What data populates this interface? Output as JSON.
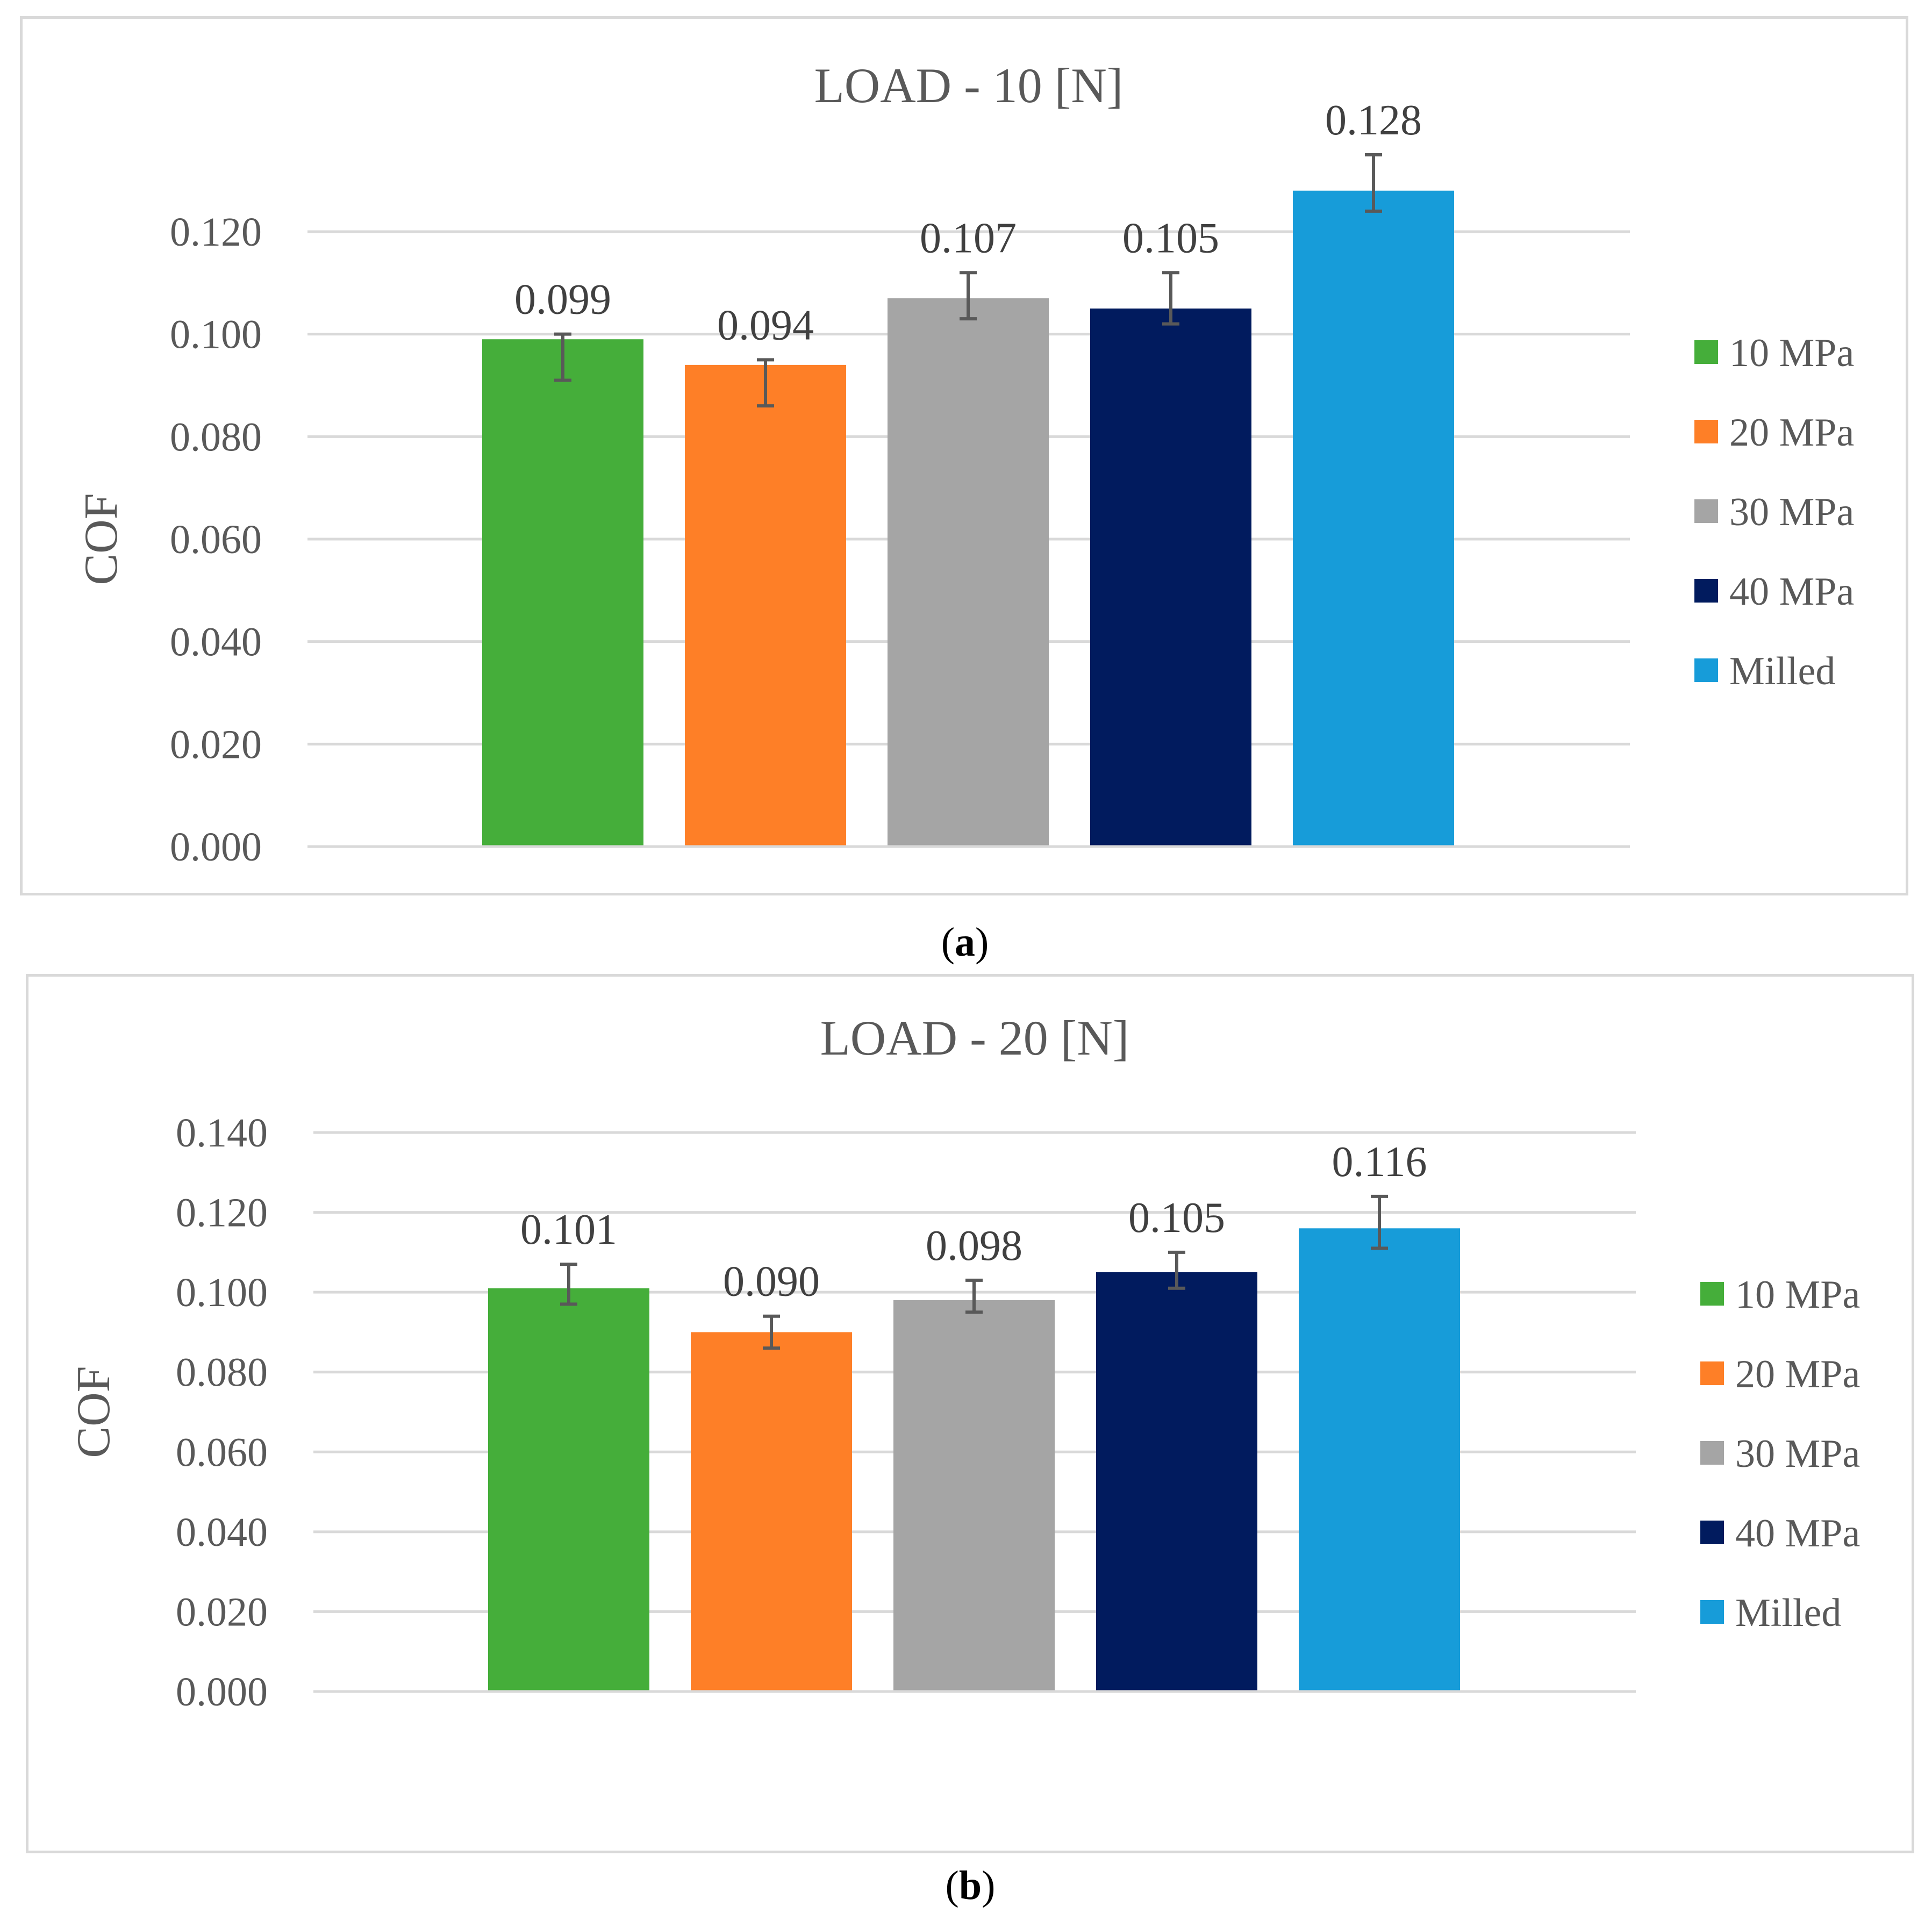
{
  "charts": [
    {
      "caption_letter": "a",
      "chart_data": {
        "type": "bar",
        "title": "LOAD - 10 [N]",
        "xlabel": "",
        "ylabel": "COF",
        "ylim": [
          0,
          0.12
        ],
        "yticks": [
          "0.000",
          "0.020",
          "0.040",
          "0.060",
          "0.080",
          "0.100",
          "0.120"
        ],
        "grid": true,
        "legend_position": "right",
        "categories": [
          "10 MPa",
          "20 MPa",
          "30 MPa",
          "40 MPa",
          "Milled"
        ],
        "values": [
          0.099,
          0.094,
          0.107,
          0.105,
          0.128
        ],
        "value_labels": [
          "0.099",
          "0.094",
          "0.107",
          "0.105",
          "0.128"
        ],
        "error_low": [
          0.091,
          0.086,
          0.103,
          0.102,
          0.124
        ],
        "error_high": [
          0.1,
          0.095,
          0.112,
          0.112,
          0.135
        ],
        "colors": [
          "#45ae3a",
          "#fe7f27",
          "#a5a5a5",
          "#011b5e",
          "#179cd9"
        ]
      }
    },
    {
      "caption_letter": "b",
      "chart_data": {
        "type": "bar",
        "title": "LOAD - 20 [N]",
        "xlabel": "",
        "ylabel": "COF",
        "ylim": [
          0,
          0.14
        ],
        "yticks": [
          "0.000",
          "0.020",
          "0.040",
          "0.060",
          "0.080",
          "0.100",
          "0.120",
          "0.140"
        ],
        "grid": true,
        "legend_position": "right",
        "categories": [
          "10 MPa",
          "20 MPa",
          "30 MPa",
          "40 MPa",
          "Milled"
        ],
        "values": [
          0.101,
          0.09,
          0.098,
          0.105,
          0.116
        ],
        "value_labels": [
          "0.101",
          "0.090",
          "0.098",
          "0.105",
          "0.116"
        ],
        "error_low": [
          0.097,
          0.086,
          0.095,
          0.101,
          0.111
        ],
        "error_high": [
          0.107,
          0.094,
          0.103,
          0.11,
          0.124
        ],
        "colors": [
          "#45ae3a",
          "#fe7f27",
          "#a5a5a5",
          "#011b5e",
          "#179cd9"
        ]
      }
    }
  ]
}
